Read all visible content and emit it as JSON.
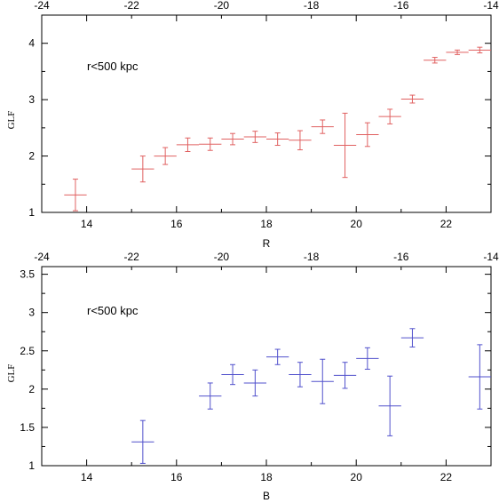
{
  "chart_data": [
    {
      "type": "scatter",
      "title": "",
      "annotation": "r<500 kpc",
      "xlabel": "R",
      "ylabel": "GLF",
      "xlim": [
        13,
        23
      ],
      "ylim": [
        1,
        4.5
      ],
      "xticks": [
        14,
        16,
        18,
        20,
        22
      ],
      "yticks": [
        1,
        2,
        3,
        4
      ],
      "top_axis": {
        "xlim": [
          -24,
          -14
        ],
        "ticks": [
          -24,
          -22,
          -20,
          -18,
          -16,
          -14
        ]
      },
      "color": "#e06060",
      "series": [
        {
          "points": [
            {
              "x": 13.75,
              "y": 1.31,
              "xerr": 0.25,
              "yerr": 0.28
            },
            {
              "x": 15.25,
              "y": 1.77,
              "xerr": 0.25,
              "yerr": 0.23
            },
            {
              "x": 15.75,
              "y": 2.0,
              "xerr": 0.25,
              "yerr": 0.15
            },
            {
              "x": 16.25,
              "y": 2.2,
              "xerr": 0.25,
              "yerr": 0.12
            },
            {
              "x": 16.75,
              "y": 2.21,
              "xerr": 0.25,
              "yerr": 0.11
            },
            {
              "x": 17.25,
              "y": 2.3,
              "xerr": 0.25,
              "yerr": 0.1
            },
            {
              "x": 17.75,
              "y": 2.34,
              "xerr": 0.25,
              "yerr": 0.1
            },
            {
              "x": 18.25,
              "y": 2.3,
              "xerr": 0.25,
              "yerr": 0.11
            },
            {
              "x": 18.75,
              "y": 2.28,
              "xerr": 0.25,
              "yerr": 0.17
            },
            {
              "x": 19.25,
              "y": 2.52,
              "xerr": 0.25,
              "yerr": 0.12
            },
            {
              "x": 19.75,
              "y": 2.19,
              "xerr": 0.25,
              "yerr": 0.57
            },
            {
              "x": 20.25,
              "y": 2.38,
              "xerr": 0.25,
              "yerr": 0.21
            },
            {
              "x": 20.75,
              "y": 2.7,
              "xerr": 0.25,
              "yerr": 0.13
            },
            {
              "x": 21.25,
              "y": 3.01,
              "xerr": 0.25,
              "yerr": 0.07
            },
            {
              "x": 21.75,
              "y": 3.7,
              "xerr": 0.25,
              "yerr": 0.05
            },
            {
              "x": 22.25,
              "y": 3.84,
              "xerr": 0.25,
              "yerr": 0.04
            },
            {
              "x": 22.75,
              "y": 3.88,
              "xerr": 0.25,
              "yerr": 0.05
            }
          ]
        }
      ]
    },
    {
      "type": "scatter",
      "title": "",
      "annotation": "r<500 kpc",
      "xlabel": "B",
      "ylabel": "GLF",
      "xlim": [
        13,
        23
      ],
      "ylim": [
        1,
        3.6
      ],
      "xticks": [
        14,
        16,
        18,
        20,
        22
      ],
      "yticks": [
        1,
        1.5,
        2,
        2.5,
        3,
        3.5
      ],
      "top_axis": {
        "xlim": [
          -24,
          -14
        ],
        "ticks": [
          -24,
          -22,
          -20,
          -18,
          -16,
          -14
        ]
      },
      "color": "#5050cc",
      "series": [
        {
          "points": [
            {
              "x": 15.25,
              "y": 1.31,
              "xerr": 0.25,
              "yerr": 0.28
            },
            {
              "x": 16.75,
              "y": 1.91,
              "xerr": 0.25,
              "yerr": 0.17
            },
            {
              "x": 17.25,
              "y": 2.19,
              "xerr": 0.25,
              "yerr": 0.13
            },
            {
              "x": 17.75,
              "y": 2.08,
              "xerr": 0.25,
              "yerr": 0.17
            },
            {
              "x": 18.25,
              "y": 2.42,
              "xerr": 0.25,
              "yerr": 0.1
            },
            {
              "x": 18.75,
              "y": 2.19,
              "xerr": 0.25,
              "yerr": 0.16
            },
            {
              "x": 19.25,
              "y": 2.1,
              "xerr": 0.25,
              "yerr": 0.29
            },
            {
              "x": 19.75,
              "y": 2.18,
              "xerr": 0.25,
              "yerr": 0.17
            },
            {
              "x": 20.25,
              "y": 2.4,
              "xerr": 0.25,
              "yerr": 0.14
            },
            {
              "x": 20.75,
              "y": 1.78,
              "xerr": 0.25,
              "yerr": 0.39
            },
            {
              "x": 21.25,
              "y": 2.67,
              "xerr": 0.25,
              "yerr": 0.12
            },
            {
              "x": 22.75,
              "y": 2.16,
              "xerr": 0.25,
              "yerr": 0.42
            }
          ]
        }
      ]
    }
  ]
}
